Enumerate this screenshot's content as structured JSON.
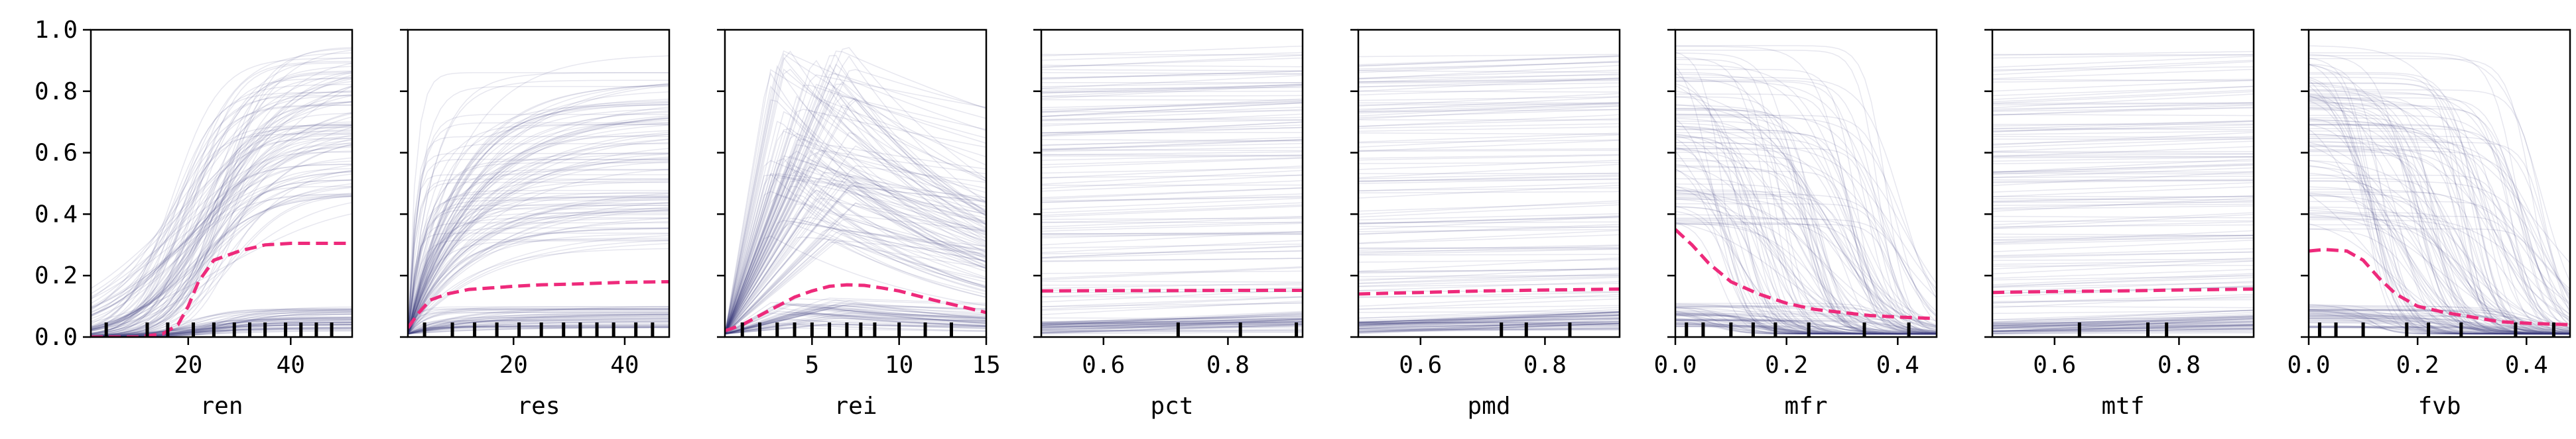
{
  "colors": {
    "ice": "#3b3b7a",
    "pdp": "#ee2a7b",
    "rug": "#000000"
  },
  "chart_data": [
    {
      "type": "line",
      "xlabel": "ren",
      "xlim": [
        1,
        52
      ],
      "ylim": [
        0,
        1
      ],
      "xticks": [
        20,
        40
      ],
      "yticks": [
        0.0,
        0.2,
        0.4,
        0.6,
        0.8,
        1.0
      ],
      "pdp": {
        "x": [
          1,
          10,
          15,
          18,
          20,
          22,
          25,
          30,
          35,
          40,
          45,
          52
        ],
        "y": [
          0.0,
          0.0,
          0.01,
          0.04,
          0.1,
          0.18,
          0.25,
          0.28,
          0.3,
          0.305,
          0.305,
          0.305
        ]
      },
      "rug": [
        4,
        12,
        16,
        21,
        25,
        29,
        32,
        35,
        39,
        42,
        45,
        48
      ],
      "ice_family": "rise",
      "ice_center": 20
    },
    {
      "type": "line",
      "xlabel": "res",
      "xlim": [
        1,
        48
      ],
      "ylim": [
        0,
        1
      ],
      "xticks": [
        20,
        40
      ],
      "pdp": {
        "x": [
          1,
          3,
          5,
          8,
          12,
          16,
          20,
          25,
          30,
          35,
          40,
          48
        ],
        "y": [
          0.03,
          0.08,
          0.12,
          0.14,
          0.155,
          0.16,
          0.165,
          0.17,
          0.172,
          0.175,
          0.178,
          0.18
        ]
      },
      "rug": [
        4,
        9,
        13,
        17,
        21,
        25,
        29,
        32,
        35,
        38,
        42,
        45
      ],
      "ice_family": "sat",
      "ice_center": 4
    },
    {
      "type": "line",
      "xlabel": "rei",
      "xlim": [
        0,
        15
      ],
      "ylim": [
        0,
        1
      ],
      "xticks": [
        5,
        10,
        15
      ],
      "pdp": {
        "x": [
          0,
          1,
          2,
          3,
          4,
          5,
          6,
          7,
          8,
          9,
          10,
          12,
          15
        ],
        "y": [
          0.02,
          0.04,
          0.07,
          0.1,
          0.13,
          0.15,
          0.165,
          0.17,
          0.168,
          0.16,
          0.15,
          0.12,
          0.08
        ]
      },
      "rug": [
        1,
        2,
        3,
        4,
        5,
        6,
        7,
        7.8,
        8.6,
        10,
        11.5,
        13
      ],
      "ice_family": "hump",
      "ice_center": 3
    },
    {
      "type": "line",
      "xlabel": "pct",
      "xlim": [
        0.5,
        0.92
      ],
      "ylim": [
        0,
        1
      ],
      "xticks": [
        0.6,
        0.8
      ],
      "pdp": {
        "x": [
          0.5,
          0.6,
          0.7,
          0.8,
          0.92
        ],
        "y": [
          0.15,
          0.151,
          0.151,
          0.152,
          0.152
        ]
      },
      "rug": [
        0.72,
        0.82,
        0.91
      ],
      "ice_family": "flat",
      "ice_center": 0.7
    },
    {
      "type": "line",
      "xlabel": "pmd",
      "xlim": [
        0.5,
        0.92
      ],
      "ylim": [
        0,
        1
      ],
      "xticks": [
        0.6,
        0.8
      ],
      "pdp": {
        "x": [
          0.5,
          0.6,
          0.7,
          0.8,
          0.92
        ],
        "y": [
          0.14,
          0.145,
          0.15,
          0.153,
          0.156
        ]
      },
      "rug": [
        0.73,
        0.77,
        0.84
      ],
      "ice_family": "flat",
      "ice_center": 0.7
    },
    {
      "type": "line",
      "xlabel": "mfr",
      "xlim": [
        0.0,
        0.47
      ],
      "ylim": [
        0,
        1
      ],
      "xticks": [
        0.0,
        0.2,
        0.4
      ],
      "pdp": {
        "x": [
          0.0,
          0.03,
          0.06,
          0.1,
          0.15,
          0.2,
          0.25,
          0.3,
          0.35,
          0.4,
          0.47
        ],
        "y": [
          0.35,
          0.3,
          0.24,
          0.18,
          0.14,
          0.11,
          0.09,
          0.08,
          0.07,
          0.065,
          0.06
        ]
      },
      "rug": [
        0.02,
        0.05,
        0.1,
        0.14,
        0.18,
        0.24,
        0.34,
        0.42
      ],
      "ice_family": "fall",
      "ice_center": 0.05
    },
    {
      "type": "line",
      "xlabel": "mtf",
      "xlim": [
        0.5,
        0.92
      ],
      "ylim": [
        0,
        1
      ],
      "xticks": [
        0.6,
        0.8
      ],
      "pdp": {
        "x": [
          0.5,
          0.6,
          0.7,
          0.8,
          0.92
        ],
        "y": [
          0.145,
          0.148,
          0.15,
          0.153,
          0.156
        ]
      },
      "rug": [
        0.64,
        0.75,
        0.78
      ],
      "ice_family": "flat",
      "ice_center": 0.7
    },
    {
      "type": "line",
      "xlabel": "fvb",
      "xlim": [
        0.0,
        0.48
      ],
      "ylim": [
        0,
        1
      ],
      "xticks": [
        0.0,
        0.2,
        0.4
      ],
      "pdp": {
        "x": [
          0.0,
          0.03,
          0.07,
          0.1,
          0.13,
          0.16,
          0.2,
          0.25,
          0.3,
          0.35,
          0.4,
          0.48
        ],
        "y": [
          0.28,
          0.285,
          0.28,
          0.25,
          0.19,
          0.14,
          0.1,
          0.08,
          0.065,
          0.05,
          0.045,
          0.04
        ]
      },
      "rug": [
        0.02,
        0.05,
        0.1,
        0.18,
        0.22,
        0.28,
        0.38,
        0.45
      ],
      "ice_family": "fall",
      "ice_center": 0.1
    }
  ]
}
